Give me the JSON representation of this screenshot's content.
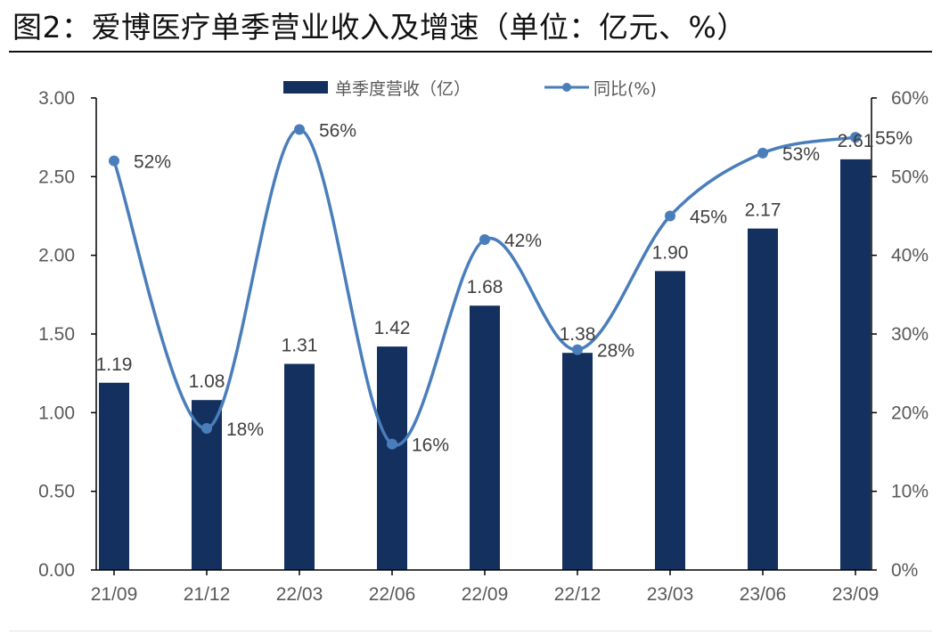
{
  "header": {
    "title": "图2：爱博医疗单季营业收入及增速（单位：亿元、%）"
  },
  "colors": {
    "bar": "#14305F",
    "line": "#4A7EBB",
    "axis": "#000000",
    "tick_text": "#595959",
    "label_text": "#404040"
  },
  "chart_data": {
    "type": "bar+line",
    "title": "爱博医疗单季营业收入及增速（单位：亿元、%）",
    "categories": [
      "21/09",
      "21/12",
      "22/03",
      "22/06",
      "22/09",
      "22/12",
      "23/03",
      "23/06",
      "23/09"
    ],
    "series": [
      {
        "name": "单季度营收（亿）",
        "type": "bar",
        "axis": "left",
        "values": [
          1.19,
          1.08,
          1.31,
          1.42,
          1.68,
          1.38,
          1.9,
          2.17,
          2.61
        ],
        "labels": [
          "1.19",
          "1.08",
          "1.31",
          "1.42",
          "1.68",
          "1.38",
          "1.90",
          "2.17",
          "2.61"
        ]
      },
      {
        "name": "同比(%)",
        "type": "line",
        "smooth": true,
        "markers": true,
        "axis": "right",
        "values": [
          52,
          18,
          56,
          16,
          42,
          28,
          45,
          53,
          55
        ],
        "labels": [
          "52%",
          "18%",
          "56%",
          "16%",
          "42%",
          "28%",
          "45%",
          "53%",
          "55%"
        ]
      }
    ],
    "y_left": {
      "range": [
        0,
        3.0
      ],
      "ticks": [
        "0.00",
        "0.50",
        "1.00",
        "1.50",
        "2.00",
        "2.50",
        "3.00"
      ]
    },
    "y_right": {
      "range": [
        0,
        60
      ],
      "ticks": [
        "0%",
        "10%",
        "20%",
        "30%",
        "40%",
        "50%",
        "60%"
      ]
    },
    "xlabel": "",
    "ylabel": "",
    "grid": false,
    "legend": {
      "position": "top-center",
      "entries": [
        "单季度营收（亿）",
        "同比(%)"
      ]
    }
  }
}
